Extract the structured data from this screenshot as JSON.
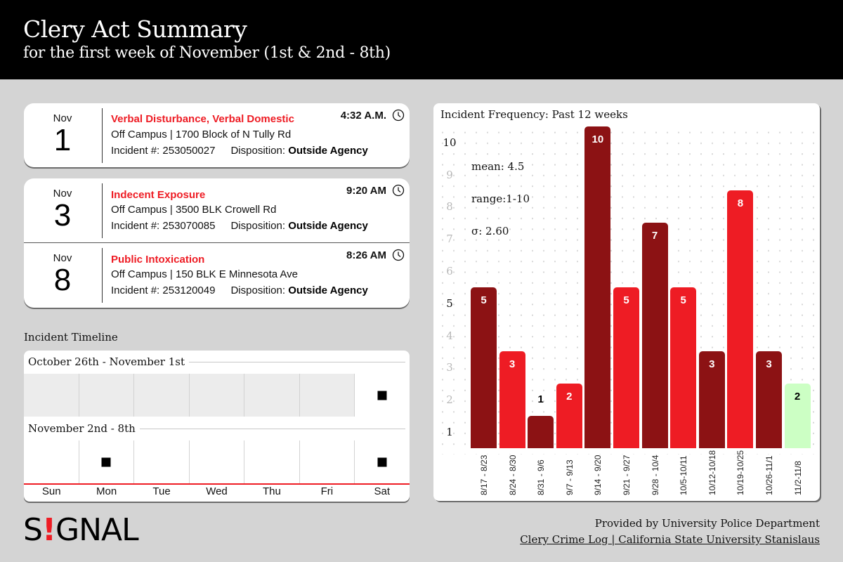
{
  "header": {
    "title": "Clery Act Summary",
    "subtitle": "for the first week of November (1st & 2nd - 8th)"
  },
  "incidents": [
    {
      "month": "Nov",
      "day": "1",
      "type": "Verbal Disturbance, Verbal Domestic",
      "location": "Off Campus | 1700 Block of N Tully Rd",
      "incident_label": "Incident #: 253050027",
      "disposition_label": "Disposition:",
      "disposition_value": "Outside Agency",
      "time": "4:32 A.M.",
      "icon": "clock-icon"
    },
    {
      "month": "Nov",
      "day": "3",
      "type": "Indecent Exposure",
      "location": "Off Campus | 3500 BLK Crowell Rd",
      "incident_label": "Incident #: 253070085",
      "disposition_label": "Disposition:",
      "disposition_value": "Outside Agency",
      "time": "9:20 AM",
      "icon": "clock-icon"
    },
    {
      "month": "Nov",
      "day": "8",
      "type": "Public Intoxication",
      "location": "Off Campus | 150 BLK E Minnesota Ave",
      "incident_label": "Incident #: 253120049",
      "disposition_label": "Disposition:",
      "disposition_value": "Outside Agency",
      "time": "8:26 AM",
      "icon": "clock-icon"
    }
  ],
  "timeline": {
    "label": "Incident Timeline",
    "weeks": [
      {
        "label": "October 26th - November 1st",
        "greyed_days": [
          true,
          true,
          true,
          true,
          true,
          true,
          false
        ],
        "incidents": [
          false,
          false,
          false,
          false,
          false,
          false,
          true
        ]
      },
      {
        "label": "November 2nd - 8th",
        "greyed_days": [
          false,
          false,
          false,
          false,
          false,
          false,
          false
        ],
        "incidents": [
          false,
          true,
          false,
          false,
          false,
          false,
          true
        ]
      }
    ],
    "days": [
      "Sun",
      "Mon",
      "Tue",
      "Wed",
      "Thu",
      "Fri",
      "Sat"
    ],
    "axis_color": "#ee1c24"
  },
  "stats": {
    "mean": "mean: 4.5",
    "range": "range:1-10",
    "sigma": "σ: 2.60"
  },
  "colors": {
    "dark_red": "#8c1214",
    "bright_red": "#ee1c24",
    "current_week_green": "#ccffc4"
  },
  "chart_data": {
    "type": "bar",
    "title": "Incident Frequency: Past 12 weeks",
    "xlabel": "",
    "ylabel": "",
    "ylim": [
      1,
      10
    ],
    "yticks": [
      1,
      2,
      3,
      4,
      5,
      6,
      7,
      8,
      9,
      10
    ],
    "grid": "dotted",
    "categories": [
      "8/17 - 8/23",
      "8/24 - 8/30",
      "8/31 - 9/6",
      "9/7 - 9/13",
      "9/14 - 9/20",
      "9/21 - 9/27",
      "9/28 - 10/4",
      "10/5-10/11",
      "10/12-10/18",
      "10/19-10/25",
      "10/26-11/1",
      "11/2-11/8"
    ],
    "values": [
      5,
      3,
      1,
      2,
      10,
      5,
      7,
      5,
      3,
      8,
      3,
      2
    ],
    "bar_colors": [
      "#8c1214",
      "#ee1c24",
      "#8c1214",
      "#ee1c24",
      "#8c1214",
      "#ee1c24",
      "#8c1214",
      "#ee1c24",
      "#8c1214",
      "#ee1c24",
      "#8c1214",
      "#ccffc4"
    ],
    "annotations": [
      "mean: 4.5",
      "range:1-10",
      "σ: 2.60"
    ]
  },
  "footer": {
    "logo": "SIGNAL",
    "provided_by": "Provided by University Police Department",
    "source": "Clery Crime Log | California State University Stanislaus"
  }
}
